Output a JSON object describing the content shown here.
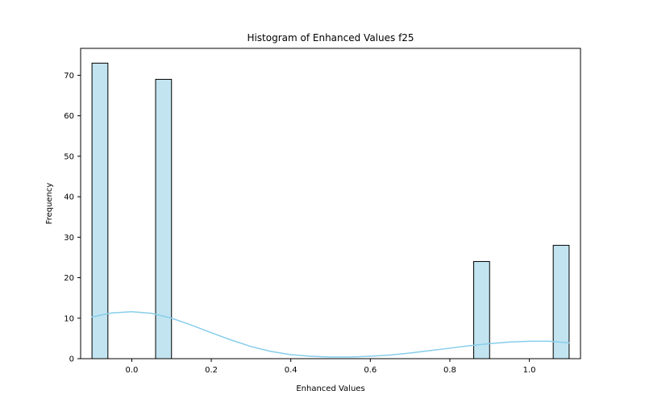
{
  "chart_data": {
    "type": "bar",
    "title": "Histogram of Enhanced Values f25",
    "xlabel": "Enhanced Values",
    "ylabel": "Frequency",
    "xlim": [
      -0.1286,
      1.1286
    ],
    "ylim": [
      0,
      76.65
    ],
    "grid": false,
    "bin_width": 0.04,
    "bins": [
      {
        "start": -0.1,
        "end": -0.06,
        "value": 73
      },
      {
        "start": 0.06,
        "end": 0.1,
        "value": 69
      },
      {
        "start": 0.86,
        "end": 0.9,
        "value": 24
      },
      {
        "start": 1.06,
        "end": 1.1,
        "value": 28
      }
    ],
    "x_ticks": [
      0.0,
      0.2,
      0.4,
      0.6,
      0.8,
      1.0
    ],
    "x_tick_labels": [
      "0.0",
      "0.2",
      "0.4",
      "0.6",
      "0.8",
      "1.0"
    ],
    "y_ticks": [
      0,
      10,
      20,
      30,
      40,
      50,
      60,
      70
    ],
    "y_tick_labels": [
      "0",
      "10",
      "20",
      "30",
      "40",
      "50",
      "60",
      "70"
    ],
    "kde": {
      "x": [
        -0.1,
        -0.05,
        0.0,
        0.05,
        0.1,
        0.15,
        0.2,
        0.25,
        0.3,
        0.35,
        0.4,
        0.45,
        0.5,
        0.55,
        0.6,
        0.65,
        0.7,
        0.75,
        0.8,
        0.85,
        0.9,
        0.95,
        1.0,
        1.05,
        1.1
      ],
      "y": [
        10.3,
        11.3,
        11.6,
        11.2,
        10.0,
        8.3,
        6.4,
        4.6,
        3.0,
        1.8,
        1.0,
        0.6,
        0.4,
        0.4,
        0.6,
        0.9,
        1.4,
        2.0,
        2.6,
        3.2,
        3.7,
        4.1,
        4.3,
        4.3,
        3.9
      ]
    },
    "colors": {
      "bar_fill": "#c2e4f0",
      "bar_edge": "#000000",
      "kde_line": "#87ceeb",
      "axes": "#000000"
    }
  }
}
